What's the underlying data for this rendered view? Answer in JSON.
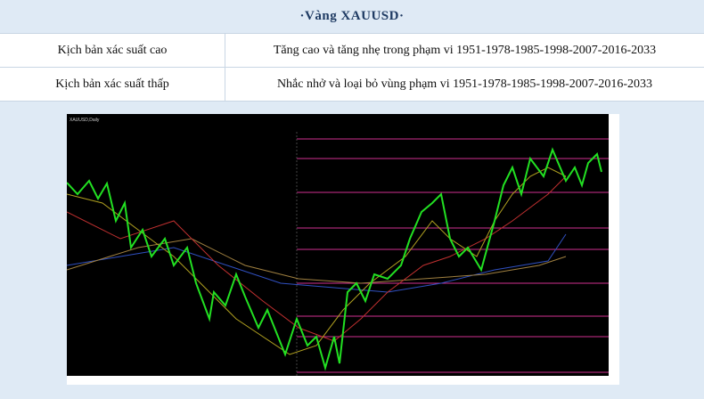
{
  "header": {
    "title": "·Vàng  XAUUSD·"
  },
  "table": {
    "rows": [
      [
        "Kịch bản xác suất cao",
        "Tăng cao và tăng nhẹ trong phạm vi 1951-1978-1985-1998-2007-2016-2033"
      ],
      [
        "Kịch bản xác suất thấp",
        "Nhắc nhở và loại bỏ vùng phạm vi 1951-1978-1985-1998-2007-2016-2033"
      ]
    ]
  },
  "chart_image": {
    "title": "XAUUSD,Daily"
  }
}
